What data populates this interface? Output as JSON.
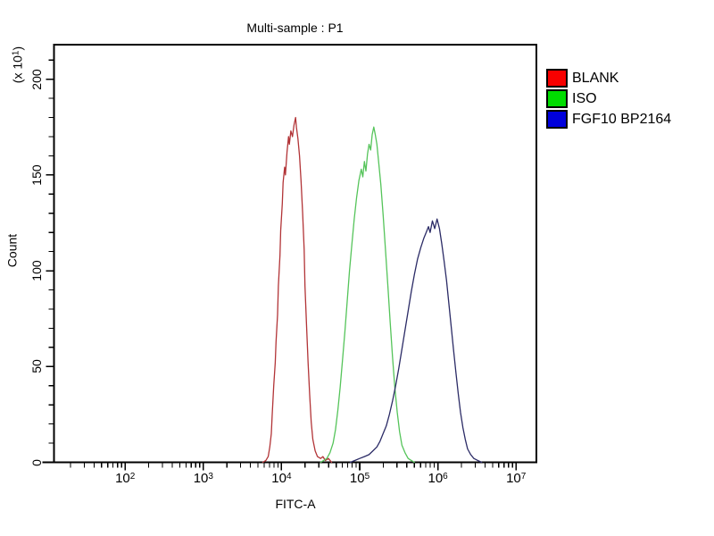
{
  "chart_data": {
    "type": "line",
    "title": "Multi-sample : P1",
    "xlabel": "FITC-A",
    "ylabel": "Count",
    "y_unit": {
      "pre": "(x 10",
      "sup": "1",
      "post": ")"
    },
    "x_scale": "log10",
    "x_range_log10": [
      1.09,
      7.26
    ],
    "ylim": [
      0,
      218
    ],
    "grid": false,
    "legend_position": "right-outside",
    "x_major_ticks": [
      {
        "base": "10",
        "exp": "2"
      },
      {
        "base": "10",
        "exp": "3"
      },
      {
        "base": "10",
        "exp": "4"
      },
      {
        "base": "10",
        "exp": "5"
      },
      {
        "base": "10",
        "exp": "6"
      },
      {
        "base": "10",
        "exp": "7"
      }
    ],
    "y_major_ticks": [
      "0",
      "50",
      "100",
      "150",
      "200"
    ],
    "y_major_tick_values": [
      0,
      50,
      100,
      150,
      200
    ],
    "y_minor_tick_step": 10,
    "series": [
      {
        "name": "BLANK",
        "line_color": "#B23437",
        "legend_color": "#F80000",
        "peak": {
          "x_log10": 4.18,
          "count": 180
        },
        "points_log10x_count": [
          [
            3.76,
            0
          ],
          [
            3.8,
            1
          ],
          [
            3.83,
            3
          ],
          [
            3.85,
            8
          ],
          [
            3.87,
            15
          ],
          [
            3.88,
            24
          ],
          [
            3.9,
            40
          ],
          [
            3.92,
            52
          ],
          [
            3.93,
            63
          ],
          [
            3.95,
            77
          ],
          [
            3.96,
            92
          ],
          [
            3.98,
            108
          ],
          [
            3.99,
            121
          ],
          [
            4.01,
            135
          ],
          [
            4.02,
            146
          ],
          [
            4.04,
            154
          ],
          [
            4.05,
            150
          ],
          [
            4.07,
            162
          ],
          [
            4.09,
            170
          ],
          [
            4.1,
            166
          ],
          [
            4.12,
            173
          ],
          [
            4.14,
            170
          ],
          [
            4.16,
            176
          ],
          [
            4.18,
            180
          ],
          [
            4.19,
            175
          ],
          [
            4.21,
            169
          ],
          [
            4.23,
            160
          ],
          [
            4.25,
            147
          ],
          [
            4.27,
            130
          ],
          [
            4.29,
            111
          ],
          [
            4.3,
            92
          ],
          [
            4.32,
            71
          ],
          [
            4.34,
            52
          ],
          [
            4.36,
            35
          ],
          [
            4.38,
            21
          ],
          [
            4.4,
            12
          ],
          [
            4.43,
            6
          ],
          [
            4.46,
            3
          ],
          [
            4.5,
            2
          ],
          [
            4.53,
            3
          ],
          [
            4.56,
            1
          ],
          [
            4.6,
            2
          ],
          [
            4.64,
            0
          ]
        ]
      },
      {
        "name": "ISO",
        "line_color": "#55C45A",
        "legend_color": "#00DD00",
        "peak": {
          "x_log10": 5.18,
          "count": 175
        },
        "points_log10x_count": [
          [
            4.5,
            0
          ],
          [
            4.54,
            1
          ],
          [
            4.58,
            2
          ],
          [
            4.62,
            5
          ],
          [
            4.66,
            10
          ],
          [
            4.69,
            17
          ],
          [
            4.72,
            27
          ],
          [
            4.75,
            39
          ],
          [
            4.78,
            53
          ],
          [
            4.81,
            68
          ],
          [
            4.84,
            84
          ],
          [
            4.87,
            100
          ],
          [
            4.9,
            114
          ],
          [
            4.93,
            127
          ],
          [
            4.96,
            138
          ],
          [
            4.99,
            147
          ],
          [
            5.02,
            153
          ],
          [
            5.04,
            149
          ],
          [
            5.06,
            157
          ],
          [
            5.08,
            152
          ],
          [
            5.1,
            161
          ],
          [
            5.12,
            166
          ],
          [
            5.14,
            163
          ],
          [
            5.16,
            171
          ],
          [
            5.18,
            175
          ],
          [
            5.2,
            171
          ],
          [
            5.22,
            166
          ],
          [
            5.24,
            158
          ],
          [
            5.27,
            145
          ],
          [
            5.3,
            129
          ],
          [
            5.33,
            111
          ],
          [
            5.36,
            92
          ],
          [
            5.39,
            73
          ],
          [
            5.42,
            55
          ],
          [
            5.45,
            39
          ],
          [
            5.48,
            26
          ],
          [
            5.51,
            16
          ],
          [
            5.54,
            9
          ],
          [
            5.58,
            5
          ],
          [
            5.62,
            2
          ],
          [
            5.66,
            1
          ],
          [
            5.7,
            0
          ]
        ]
      },
      {
        "name": "FGF10 BP2164",
        "line_color": "#2B2B66",
        "legend_color": "#0000DC",
        "peak": {
          "x_log10": 6.0,
          "count": 127
        },
        "points_log10x_count": [
          [
            4.88,
            0
          ],
          [
            4.94,
            1
          ],
          [
            5.0,
            2
          ],
          [
            5.06,
            3
          ],
          [
            5.12,
            4
          ],
          [
            5.17,
            6
          ],
          [
            5.22,
            8
          ],
          [
            5.26,
            11
          ],
          [
            5.3,
            15
          ],
          [
            5.34,
            19
          ],
          [
            5.38,
            25
          ],
          [
            5.42,
            32
          ],
          [
            5.46,
            40
          ],
          [
            5.5,
            49
          ],
          [
            5.54,
            59
          ],
          [
            5.58,
            69
          ],
          [
            5.62,
            79
          ],
          [
            5.66,
            89
          ],
          [
            5.7,
            98
          ],
          [
            5.74,
            106
          ],
          [
            5.78,
            112
          ],
          [
            5.82,
            117
          ],
          [
            5.85,
            120
          ],
          [
            5.88,
            123
          ],
          [
            5.9,
            120
          ],
          [
            5.93,
            126
          ],
          [
            5.96,
            122
          ],
          [
            5.99,
            127
          ],
          [
            6.02,
            122
          ],
          [
            6.05,
            114
          ],
          [
            6.08,
            105
          ],
          [
            6.11,
            95
          ],
          [
            6.14,
            83
          ],
          [
            6.17,
            71
          ],
          [
            6.2,
            59
          ],
          [
            6.23,
            47
          ],
          [
            6.26,
            36
          ],
          [
            6.29,
            26
          ],
          [
            6.32,
            18
          ],
          [
            6.35,
            12
          ],
          [
            6.38,
            7
          ],
          [
            6.42,
            4
          ],
          [
            6.46,
            2
          ],
          [
            6.51,
            1
          ],
          [
            6.56,
            0
          ]
        ]
      }
    ],
    "axis_color": "#000000",
    "background_color": "#FFFFFF"
  }
}
